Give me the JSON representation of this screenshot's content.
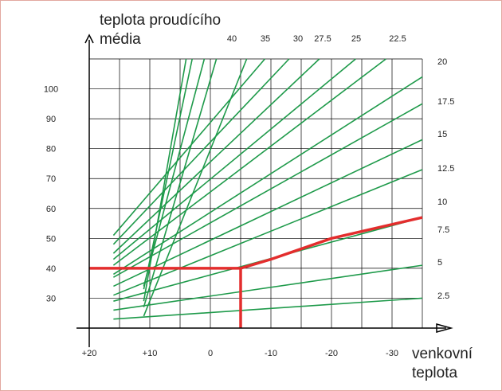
{
  "chart_data": {
    "type": "line",
    "title": "",
    "ylabel": [
      "teplota proudícího",
      "média"
    ],
    "xlabel": [
      "venkovní",
      "teplota"
    ],
    "x_ticks": [
      "+20",
      "+10",
      "0",
      "-10",
      "-20",
      "-30"
    ],
    "x_tick_values": [
      20,
      10,
      0,
      -10,
      -20,
      -30
    ],
    "y_ticks": [
      "30",
      "40",
      "50",
      "60",
      "70",
      "80",
      "90",
      "100"
    ],
    "y_tick_values": [
      30,
      40,
      50,
      60,
      70,
      80,
      90,
      100
    ],
    "xlim": [
      20,
      -35
    ],
    "ylim": [
      20,
      110
    ],
    "grid": true,
    "top_curve_labels": [
      "40",
      "35",
      "30",
      "27.5",
      "25",
      "22.5"
    ],
    "right_curve_labels": [
      "20",
      "17.5",
      "15",
      "12.5",
      "10",
      "7.5",
      "5",
      "2.5"
    ],
    "series": [
      {
        "points": [
          [
            16,
            23
          ],
          [
            -35,
            30
          ]
        ]
      },
      {
        "points": [
          [
            16,
            26
          ],
          [
            -35,
            41
          ]
        ]
      },
      {
        "points": [
          [
            16,
            29
          ],
          [
            -35,
            57
          ]
        ]
      },
      {
        "points": [
          [
            16,
            31
          ],
          [
            -35,
            73
          ]
        ]
      },
      {
        "points": [
          [
            16,
            34
          ],
          [
            -35,
            83
          ]
        ]
      },
      {
        "points": [
          [
            16,
            37
          ],
          [
            -35,
            95
          ]
        ]
      },
      {
        "points": [
          [
            16,
            38
          ],
          [
            -35,
            104
          ]
        ]
      },
      {
        "points": [
          [
            16,
            41
          ],
          [
            -29,
            110
          ]
        ]
      },
      {
        "points": [
          [
            16,
            43
          ],
          [
            -24,
            110
          ]
        ]
      },
      {
        "points": [
          [
            16,
            45
          ],
          [
            -18,
            110
          ]
        ]
      },
      {
        "points": [
          [
            16,
            48
          ],
          [
            -13,
            110
          ]
        ]
      },
      {
        "points": [
          [
            16,
            51
          ],
          [
            -9,
            110
          ]
        ]
      },
      {
        "points": [
          [
            11,
            24
          ],
          [
            -6,
            110
          ]
        ]
      },
      {
        "points": [
          [
            11,
            27
          ],
          [
            -1,
            110
          ]
        ]
      },
      {
        "points": [
          [
            11,
            29
          ],
          [
            4,
            110
          ]
        ]
      },
      {
        "points": [
          [
            11,
            33
          ],
          [
            3,
            110
          ]
        ]
      },
      {
        "points": [
          [
            11,
            34
          ],
          [
            1,
            110
          ]
        ]
      }
    ],
    "highlight": {
      "color": "#e32d2d",
      "horizontal": {
        "y": 40,
        "from_x": 20,
        "to_x": -5
      },
      "vertical": {
        "x": -5,
        "from_y": 20,
        "to_y": 40
      },
      "curve": [
        [
          -5,
          40
        ],
        [
          -10,
          43
        ],
        [
          -20,
          50
        ],
        [
          -35,
          57
        ]
      ]
    },
    "curve_color": "#1e9a4a",
    "grid_color": "#000000"
  }
}
